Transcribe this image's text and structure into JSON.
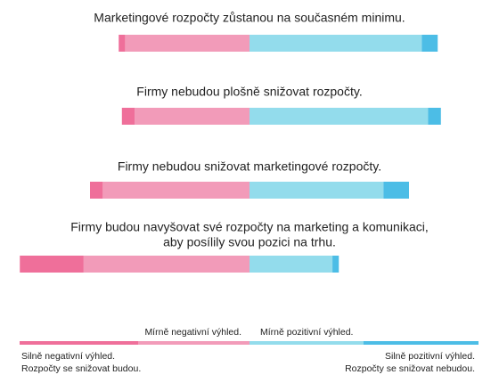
{
  "chart_data": {
    "type": "diverging-bar",
    "categories": [
      [
        "Marketingové rozpočty zůstanou na současném minimu."
      ],
      [
        "Firmy nebudou plošně snižovat rozpočty."
      ],
      [
        "Firmy nebudou snižovat marketingové rozpočty."
      ],
      [
        "Firmy budou navyšovat své rozpočty na marketing a komunikaci,",
        "aby posílily svou pozici na trhu."
      ]
    ],
    "series": [
      {
        "name": [
          "Silně negativní výhled.",
          "Rozpočty se snižovat budou."
        ],
        "color": "#ef6f9a",
        "side": "negative",
        "values": [
          2,
          4,
          4,
          20
        ]
      },
      {
        "name": [
          "Mírně negativní výhled."
        ],
        "color": "#f29bb9",
        "side": "negative",
        "values": [
          39,
          36,
          46,
          52
        ]
      },
      {
        "name": [
          "Mírně pozitivní výhled."
        ],
        "color": "#93dcec",
        "side": "positive",
        "values": [
          54,
          56,
          42,
          26
        ]
      },
      {
        "name": [
          "Silně pozitivní výhled.",
          "Rozpočty se snižovat nebudou."
        ],
        "color": "#4cbde6",
        "side": "positive",
        "values": [
          5,
          4,
          8,
          2
        ]
      }
    ]
  }
}
